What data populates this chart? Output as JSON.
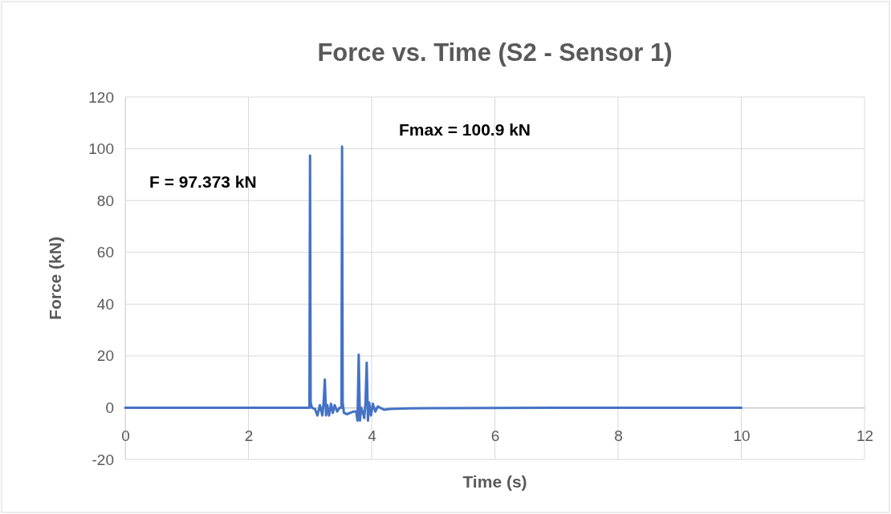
{
  "chart_data": {
    "type": "line",
    "title": "Force vs. Time (S2 - Sensor 1)",
    "xlabel": "Time (s)",
    "ylabel": "Force (kN)",
    "xlim": [
      0,
      12
    ],
    "xticks": [
      0,
      2,
      4,
      6,
      8,
      10,
      12
    ],
    "ylim": [
      -20,
      120
    ],
    "yticks": [
      -20,
      0,
      20,
      40,
      60,
      80,
      100,
      120
    ],
    "grid": true,
    "marker": "none",
    "line_style": "solid",
    "series": [
      {
        "color": "#4472c4",
        "x": [
          0,
          1,
          2,
          2.99,
          3.0,
          3.01,
          3.03,
          3.08,
          3.12,
          3.16,
          3.2,
          3.22,
          3.24,
          3.26,
          3.28,
          3.31,
          3.34,
          3.37,
          3.4,
          3.44,
          3.48,
          3.51,
          3.52,
          3.53,
          3.55,
          3.6,
          3.65,
          3.7,
          3.75,
          3.77,
          3.79,
          3.81,
          3.83,
          3.86,
          3.88,
          3.9,
          3.92,
          3.94,
          3.96,
          3.99,
          4.02,
          4.06,
          4.1,
          4.2,
          4.3,
          4.5,
          5,
          6,
          7,
          8,
          9,
          10
        ],
        "values": [
          0,
          0,
          0,
          0,
          97.4,
          2,
          0,
          -0.5,
          -3,
          1,
          -3,
          2,
          10.9,
          -3,
          1,
          -3,
          1.5,
          -2,
          1,
          -1.5,
          0,
          0,
          100.9,
          2,
          -2,
          -2.5,
          -2,
          -1.5,
          -1.5,
          -5,
          20.5,
          -5,
          0,
          -2,
          -4,
          2,
          17.4,
          -5,
          2,
          -3,
          1.5,
          -1.5,
          0.5,
          -0.8,
          -0.5,
          -0.3,
          -0.2,
          -0.1,
          0,
          0,
          0,
          0
        ]
      }
    ],
    "annotations": [
      "F = 97.373 kN",
      "Fmax = 100.9 kN"
    ]
  }
}
